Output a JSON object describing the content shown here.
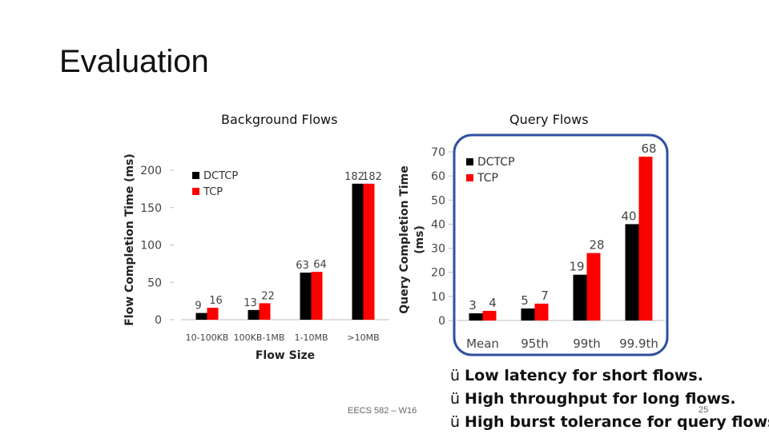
{
  "slide": {
    "title": "Evaluation",
    "footer": "EECS 582 – W16",
    "page_number": "25",
    "bullets": [
      {
        "check": "ü",
        "text": "Low latency for short flows."
      },
      {
        "check": "ü",
        "text": "High throughput for long flows."
      },
      {
        "check": "ü",
        "text": "High burst tolerance for query flows."
      }
    ]
  },
  "chart_data": [
    {
      "type": "bar",
      "title": "Background Flows",
      "xlabel": "Flow Size",
      "ylabel": "Flow Completion Time (ms)",
      "ylim": [
        0,
        200
      ],
      "yticks": [
        0,
        50,
        100,
        150,
        200
      ],
      "categories": [
        "10-100KB",
        "100KB-1MB",
        "1-10MB",
        ">10MB"
      ],
      "series": [
        {
          "name": "DCTCP",
          "color": "#000000",
          "values": [
            9,
            13,
            63,
            182
          ]
        },
        {
          "name": "TCP",
          "color": "#ff0000",
          "values": [
            16,
            22,
            64,
            182
          ]
        }
      ],
      "legend": "top-left",
      "grid": false
    },
    {
      "type": "bar",
      "title": "Query Flows",
      "xlabel": "",
      "ylabel": "Query Completion Time (ms)",
      "ylim": [
        0,
        70
      ],
      "yticks": [
        0,
        10,
        20,
        30,
        40,
        50,
        60,
        70
      ],
      "categories": [
        "Mean",
        "95th",
        "99th",
        "99.9th"
      ],
      "series": [
        {
          "name": "DCTCP",
          "color": "#000000",
          "values": [
            3,
            5,
            19,
            40
          ]
        },
        {
          "name": "TCP",
          "color": "#ff0000",
          "values": [
            4,
            7,
            28,
            68
          ]
        }
      ],
      "legend": "top-left",
      "grid": false,
      "highlight_border_color": "#2f4f9f"
    }
  ]
}
